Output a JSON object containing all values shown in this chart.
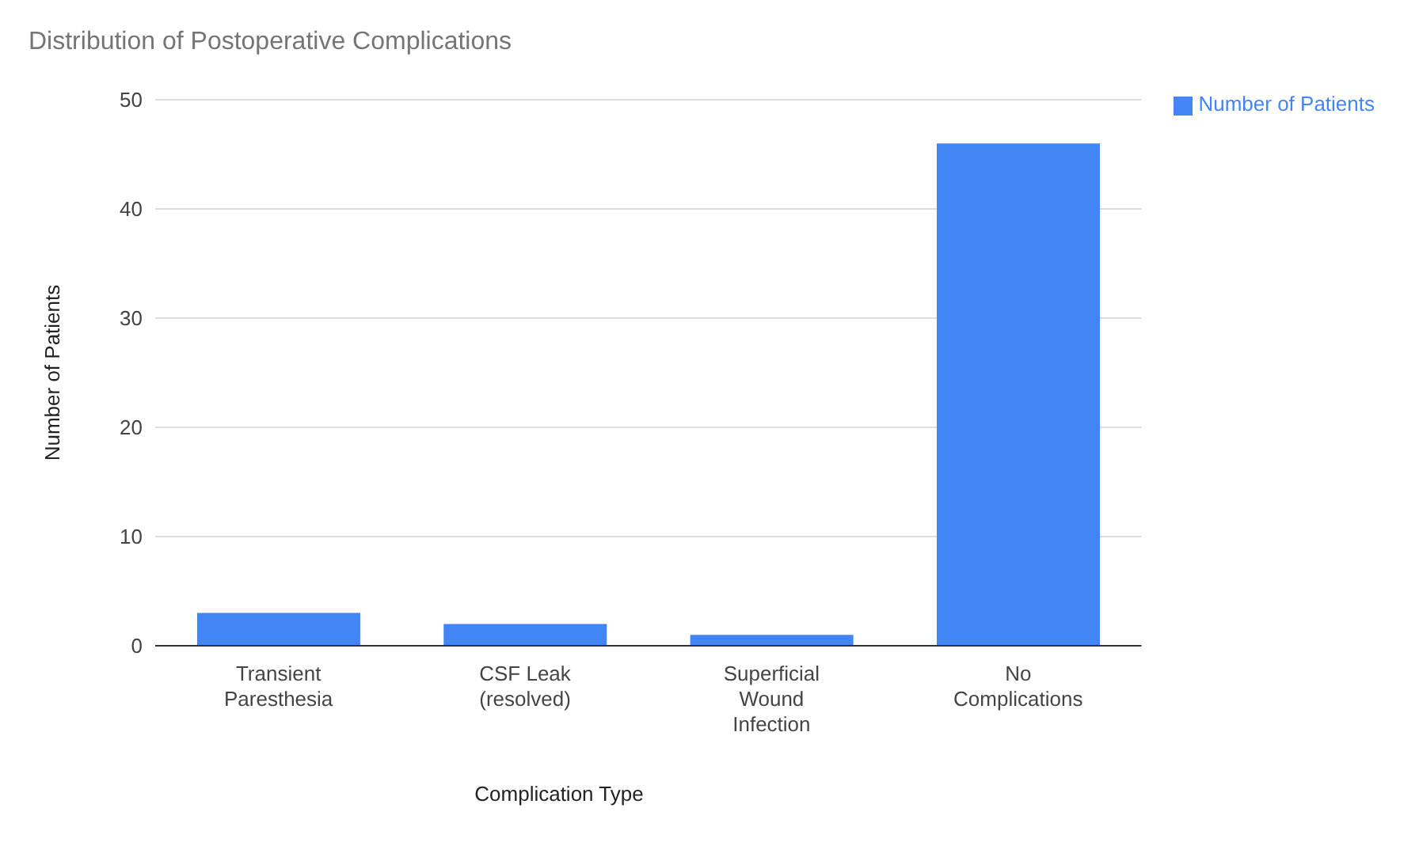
{
  "chart_data": {
    "type": "bar",
    "title": "Distribution of Postoperative Complications",
    "xlabel": "Complication Type",
    "ylabel": "Number of Patients",
    "categories": [
      "Transient Paresthesia",
      "CSF Leak (resolved)",
      "Superficial Wound Infection",
      "No Complications"
    ],
    "series": [
      {
        "name": "Number of Patients",
        "color": "#4285f4",
        "values": [
          3,
          2,
          1,
          46
        ]
      }
    ],
    "ylim": [
      0,
      50
    ],
    "yticks": [
      0,
      10,
      20,
      30,
      40,
      50
    ],
    "grid": "y",
    "legend": "top right"
  }
}
